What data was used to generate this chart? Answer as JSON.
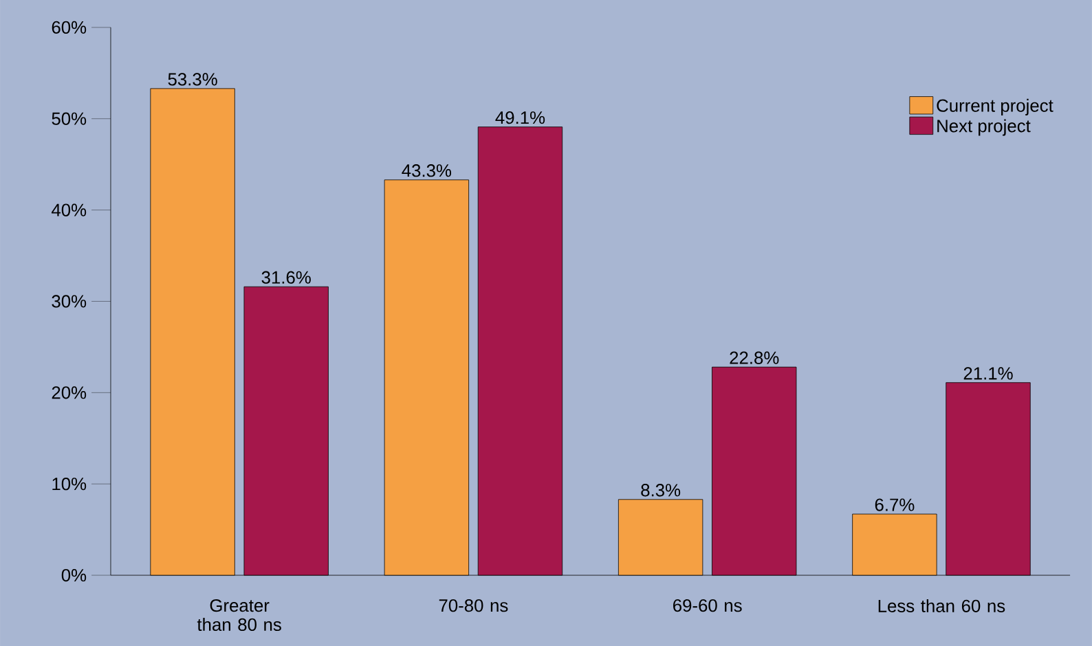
{
  "chart_data": {
    "type": "bar",
    "categories": [
      "Greater than 80 ns",
      "70-80 ns",
      "69-60 ns",
      "Less than 60 ns"
    ],
    "series": [
      {
        "name": "Current project",
        "color": "#f5a043",
        "values": [
          53.3,
          43.3,
          8.3,
          6.7
        ],
        "value_labels": [
          "53.3%",
          "43.3%",
          "8.3%",
          "6.7%"
        ]
      },
      {
        "name": "Next project",
        "color": "#a5174b",
        "values": [
          31.6,
          49.1,
          22.8,
          21.1
        ],
        "value_labels": [
          "31.6%",
          "49.1%",
          "22.8%",
          "21.1%"
        ]
      }
    ],
    "ylim": [
      0,
      60
    ],
    "yticks": [
      {
        "value": 0,
        "label": "0%"
      },
      {
        "value": 10,
        "label": "10%"
      },
      {
        "value": 20,
        "label": "20%"
      },
      {
        "value": 30,
        "label": "30%"
      },
      {
        "value": 40,
        "label": "40%"
      },
      {
        "value": 50,
        "label": "50%"
      },
      {
        "value": 60,
        "label": "60%"
      }
    ],
    "grid": false,
    "legend": "top right"
  }
}
